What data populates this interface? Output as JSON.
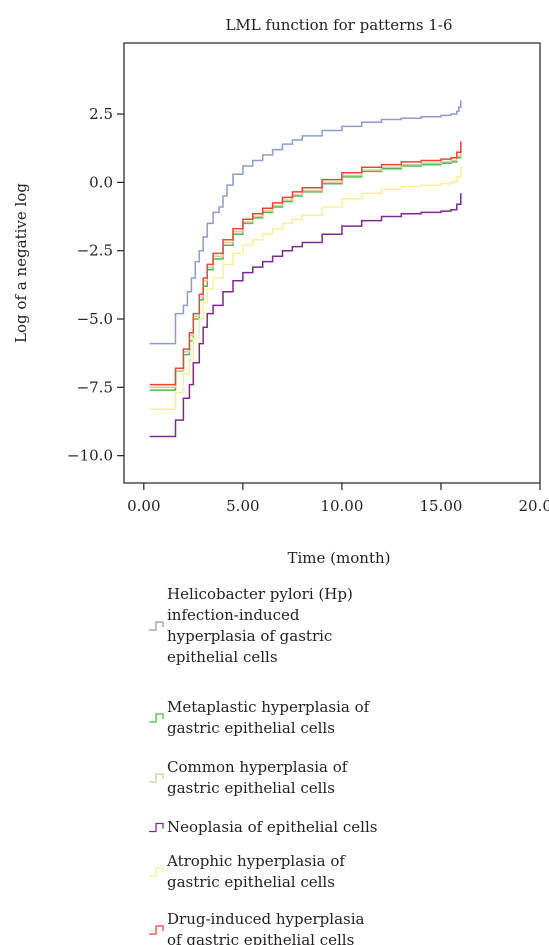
{
  "chart_data": {
    "type": "line",
    "step": true,
    "title": "LML function for patterns 1-6",
    "xlabel": "Time (month)",
    "ylabel": "Log of a negative log",
    "xlim": [
      -1,
      20
    ],
    "ylim": [
      -11,
      5.1
    ],
    "xticks": [
      0,
      5,
      10,
      15,
      20
    ],
    "xtick_labels": [
      "0.00",
      "5.00",
      "10.00",
      "15.00",
      "20.00"
    ],
    "yticks": [
      2.5,
      0,
      -2.5,
      -5,
      -7.5,
      -10
    ],
    "ytick_labels": [
      "2.5",
      "0.0",
      "−2.5",
      "−5.0",
      "−7.5",
      "−10.0"
    ],
    "grid": false,
    "legend_position": "bottom",
    "series": [
      {
        "name": "Helicobacter pylori (Hp) infection-induced hyperplasia of gastric epithelial cells",
        "color": "#8e9ccc",
        "points": [
          [
            0.3,
            -5.9
          ],
          [
            1.6,
            -5.9
          ],
          [
            1.6,
            -4.8
          ],
          [
            2.0,
            -4.8
          ],
          [
            2.0,
            -4.5
          ],
          [
            2.2,
            -4.0
          ],
          [
            2.4,
            -3.5
          ],
          [
            2.6,
            -2.9
          ],
          [
            2.8,
            -2.5
          ],
          [
            3.0,
            -2.0
          ],
          [
            3.2,
            -1.5
          ],
          [
            3.5,
            -1.1
          ],
          [
            3.8,
            -0.9
          ],
          [
            4.0,
            -0.5
          ],
          [
            4.2,
            -0.1
          ],
          [
            4.5,
            0.3
          ],
          [
            5.0,
            0.6
          ],
          [
            5.5,
            0.8
          ],
          [
            6.0,
            1.0
          ],
          [
            6.5,
            1.2
          ],
          [
            7.0,
            1.4
          ],
          [
            7.5,
            1.55
          ],
          [
            8.0,
            1.7
          ],
          [
            9.0,
            1.9
          ],
          [
            10.0,
            2.05
          ],
          [
            11.0,
            2.2
          ],
          [
            12.0,
            2.3
          ],
          [
            13.0,
            2.35
          ],
          [
            14.0,
            2.4
          ],
          [
            15.0,
            2.45
          ],
          [
            15.5,
            2.5
          ],
          [
            15.8,
            2.6
          ],
          [
            15.9,
            2.75
          ],
          [
            16.0,
            3.0
          ]
        ]
      },
      {
        "name": "Metaplastic hyperplasia of gastric epithelial cells",
        "color": "#4cbb4c",
        "points": [
          [
            0.3,
            -7.6
          ],
          [
            1.6,
            -7.6
          ],
          [
            1.6,
            -6.9
          ],
          [
            2.0,
            -6.9
          ],
          [
            2.0,
            -6.3
          ],
          [
            2.3,
            -5.8
          ],
          [
            2.5,
            -5.0
          ],
          [
            2.8,
            -4.3
          ],
          [
            3.0,
            -3.8
          ],
          [
            3.2,
            -3.2
          ],
          [
            3.5,
            -2.8
          ],
          [
            4.0,
            -2.3
          ],
          [
            4.5,
            -1.9
          ],
          [
            5.0,
            -1.5
          ],
          [
            5.5,
            -1.3
          ],
          [
            6.0,
            -1.1
          ],
          [
            6.5,
            -0.9
          ],
          [
            7.0,
            -0.7
          ],
          [
            7.5,
            -0.5
          ],
          [
            8.0,
            -0.35
          ],
          [
            9.0,
            -0.05
          ],
          [
            10.0,
            0.2
          ],
          [
            11.0,
            0.4
          ],
          [
            12.0,
            0.5
          ],
          [
            13.0,
            0.6
          ],
          [
            14.0,
            0.65
          ],
          [
            15.0,
            0.7
          ],
          [
            15.5,
            0.75
          ],
          [
            15.8,
            0.9
          ],
          [
            16.0,
            1.2
          ]
        ]
      },
      {
        "name": "Common hyperplasia of gastric epithelial cells",
        "color": "#d9c9a0",
        "points": [
          [
            0.3,
            -7.5
          ],
          [
            1.6,
            -7.5
          ],
          [
            1.6,
            -6.9
          ],
          [
            2.0,
            -6.9
          ],
          [
            2.0,
            -6.2
          ],
          [
            2.3,
            -5.6
          ],
          [
            2.5,
            -4.9
          ],
          [
            2.8,
            -4.2
          ],
          [
            3.0,
            -3.6
          ],
          [
            3.2,
            -3.1
          ],
          [
            3.5,
            -2.7
          ],
          [
            4.0,
            -2.2
          ],
          [
            4.5,
            -1.8
          ],
          [
            5.0,
            -1.45
          ],
          [
            5.5,
            -1.25
          ],
          [
            6.0,
            -1.05
          ],
          [
            6.5,
            -0.85
          ],
          [
            7.0,
            -0.65
          ],
          [
            7.5,
            -0.45
          ],
          [
            8.0,
            -0.3
          ],
          [
            9.0,
            0.0
          ],
          [
            10.0,
            0.25
          ],
          [
            11.0,
            0.45
          ],
          [
            12.0,
            0.55
          ],
          [
            13.0,
            0.65
          ],
          [
            14.0,
            0.7
          ],
          [
            15.0,
            0.75
          ],
          [
            15.5,
            0.8
          ],
          [
            15.8,
            0.95
          ],
          [
            16.0,
            1.3
          ]
        ]
      },
      {
        "name": "Neoplasia of epithelial cells",
        "color": "#7b2b8f",
        "points": [
          [
            0.3,
            -9.3
          ],
          [
            1.6,
            -9.3
          ],
          [
            1.6,
            -8.7
          ],
          [
            2.0,
            -8.7
          ],
          [
            2.0,
            -7.9
          ],
          [
            2.3,
            -7.4
          ],
          [
            2.5,
            -6.6
          ],
          [
            2.8,
            -5.9
          ],
          [
            3.0,
            -5.3
          ],
          [
            3.2,
            -4.8
          ],
          [
            3.5,
            -4.5
          ],
          [
            4.0,
            -4.0
          ],
          [
            4.5,
            -3.6
          ],
          [
            5.0,
            -3.3
          ],
          [
            5.5,
            -3.1
          ],
          [
            6.0,
            -2.9
          ],
          [
            6.5,
            -2.7
          ],
          [
            7.0,
            -2.5
          ],
          [
            7.5,
            -2.35
          ],
          [
            8.0,
            -2.2
          ],
          [
            9.0,
            -1.9
          ],
          [
            10.0,
            -1.6
          ],
          [
            11.0,
            -1.4
          ],
          [
            12.0,
            -1.25
          ],
          [
            13.0,
            -1.15
          ],
          [
            14.0,
            -1.1
          ],
          [
            15.0,
            -1.05
          ],
          [
            15.5,
            -1.0
          ],
          [
            15.8,
            -0.8
          ],
          [
            16.0,
            -0.4
          ]
        ]
      },
      {
        "name": "Atrophic hyperplasia of gastric epithelial cells",
        "color": "#f7ef9a",
        "points": [
          [
            0.3,
            -8.3
          ],
          [
            1.6,
            -8.3
          ],
          [
            1.6,
            -7.7
          ],
          [
            2.0,
            -7.7
          ],
          [
            2.0,
            -7.0
          ],
          [
            2.3,
            -6.5
          ],
          [
            2.5,
            -5.7
          ],
          [
            2.8,
            -5.0
          ],
          [
            3.0,
            -4.4
          ],
          [
            3.2,
            -3.9
          ],
          [
            3.5,
            -3.5
          ],
          [
            4.0,
            -3.0
          ],
          [
            4.5,
            -2.6
          ],
          [
            5.0,
            -2.3
          ],
          [
            5.5,
            -2.1
          ],
          [
            6.0,
            -1.9
          ],
          [
            6.5,
            -1.7
          ],
          [
            7.0,
            -1.5
          ],
          [
            7.5,
            -1.35
          ],
          [
            8.0,
            -1.2
          ],
          [
            9.0,
            -0.9
          ],
          [
            10.0,
            -0.6
          ],
          [
            11.0,
            -0.4
          ],
          [
            12.0,
            -0.25
          ],
          [
            13.0,
            -0.15
          ],
          [
            14.0,
            -0.1
          ],
          [
            15.0,
            -0.05
          ],
          [
            15.5,
            0.0
          ],
          [
            15.8,
            0.2
          ],
          [
            16.0,
            0.6
          ]
        ]
      },
      {
        "name": "Drug-induced hyperplasia of gastric epithelial cells",
        "color": "#ee4436",
        "points": [
          [
            0.3,
            -7.4
          ],
          [
            1.6,
            -7.4
          ],
          [
            1.6,
            -6.8
          ],
          [
            2.0,
            -6.8
          ],
          [
            2.0,
            -6.1
          ],
          [
            2.3,
            -5.5
          ],
          [
            2.5,
            -4.8
          ],
          [
            2.8,
            -4.1
          ],
          [
            3.0,
            -3.5
          ],
          [
            3.2,
            -3.0
          ],
          [
            3.5,
            -2.6
          ],
          [
            4.0,
            -2.1
          ],
          [
            4.5,
            -1.7
          ],
          [
            5.0,
            -1.35
          ],
          [
            5.5,
            -1.15
          ],
          [
            6.0,
            -0.95
          ],
          [
            6.5,
            -0.75
          ],
          [
            7.0,
            -0.55
          ],
          [
            7.5,
            -0.35
          ],
          [
            8.0,
            -0.2
          ],
          [
            9.0,
            0.1
          ],
          [
            10.0,
            0.35
          ],
          [
            11.0,
            0.55
          ],
          [
            12.0,
            0.65
          ],
          [
            13.0,
            0.75
          ],
          [
            14.0,
            0.8
          ],
          [
            15.0,
            0.85
          ],
          [
            15.5,
            0.9
          ],
          [
            15.8,
            1.1
          ],
          [
            16.0,
            1.5
          ]
        ]
      }
    ]
  },
  "legend_lines": [
    [
      "Helicobacter pylori (Hp)",
      "infection-induced",
      "hyperplasia of gastric",
      "epithelial cells"
    ],
    [
      "Metaplastic hyperplasia of",
      "gastric epithelial cells"
    ],
    [
      "Common hyperplasia of",
      "gastric epithelial cells"
    ],
    [
      "Neoplasia of epithelial cells"
    ],
    [
      "Atrophic hyperplasia of",
      "gastric epithelial cells"
    ],
    [
      "Drug-induced hyperplasia",
      "of gastric epithelial cells"
    ]
  ]
}
